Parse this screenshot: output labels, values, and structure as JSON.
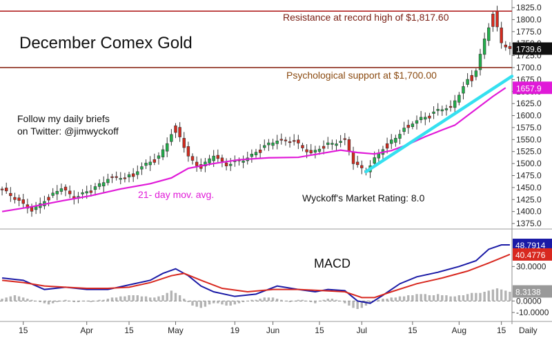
{
  "chart_data": [
    {
      "type": "candlestick",
      "title": "December Comex Gold",
      "note": "Follow my daily briefs\non Twitter:  @jimwyckoff",
      "y_ticks": [
        1375,
        1400,
        1425,
        1450,
        1475,
        1500,
        1525,
        1550,
        1575,
        1600,
        1625,
        1650,
        1675,
        1700,
        1725,
        1750,
        1775,
        1800,
        1825
      ],
      "y_tick_labels": [
        "1375.0",
        "1400.0",
        "1425.0",
        "1450.0",
        "1475.0",
        "1500.0",
        "1525.0",
        "1550.0",
        "1575.0",
        "1600.0",
        "1625.0",
        "1650.0",
        "1675.0",
        "1700.0",
        "1725.0",
        "1750.0",
        "1775.0",
        "1800.0",
        "1825.0"
      ],
      "ylim": [
        1365,
        1838
      ],
      "x_labels": [
        {
          "index": 5,
          "label": "15"
        },
        {
          "index": 20,
          "label": "Apr"
        },
        {
          "index": 30,
          "label": "15"
        },
        {
          "index": 41,
          "label": "May"
        },
        {
          "index": 55,
          "label": "19"
        },
        {
          "index": 64,
          "label": "Jun"
        },
        {
          "index": 75,
          "label": "15"
        },
        {
          "index": 85,
          "label": "Jul"
        },
        {
          "index": 97,
          "label": "15"
        },
        {
          "index": 108,
          "label": "Aug"
        },
        {
          "index": 118,
          "label": "15"
        }
      ],
      "x_axis_suffix": "Daily",
      "n_bars": 121,
      "price_series": [
        {
          "index": 0,
          "value": 1445
        },
        {
          "index": 4,
          "value": 1423
        },
        {
          "index": 7,
          "value": 1400
        },
        {
          "index": 10,
          "value": 1425
        },
        {
          "index": 14,
          "value": 1448
        },
        {
          "index": 17,
          "value": 1430
        },
        {
          "index": 21,
          "value": 1444
        },
        {
          "index": 25,
          "value": 1470
        },
        {
          "index": 29,
          "value": 1470
        },
        {
          "index": 33,
          "value": 1492
        },
        {
          "index": 37,
          "value": 1515
        },
        {
          "index": 41,
          "value": 1575
        },
        {
          "index": 44,
          "value": 1515
        },
        {
          "index": 47,
          "value": 1490
        },
        {
          "index": 50,
          "value": 1518
        },
        {
          "index": 53,
          "value": 1497
        },
        {
          "index": 57,
          "value": 1508
        },
        {
          "index": 61,
          "value": 1530
        },
        {
          "index": 65,
          "value": 1550
        },
        {
          "index": 69,
          "value": 1545
        },
        {
          "index": 73,
          "value": 1522
        },
        {
          "index": 77,
          "value": 1540
        },
        {
          "index": 81,
          "value": 1550
        },
        {
          "index": 83,
          "value": 1500
        },
        {
          "index": 86,
          "value": 1485
        },
        {
          "index": 88,
          "value": 1510
        },
        {
          "index": 91,
          "value": 1540
        },
        {
          "index": 95,
          "value": 1572
        },
        {
          "index": 99,
          "value": 1595
        },
        {
          "index": 103,
          "value": 1610
        },
        {
          "index": 106,
          "value": 1618
        },
        {
          "index": 109,
          "value": 1660
        },
        {
          "index": 112,
          "value": 1695
        },
        {
          "index": 114,
          "value": 1760
        },
        {
          "index": 116,
          "value": 1812
        },
        {
          "index": 118,
          "value": 1750
        },
        {
          "index": 120,
          "value": 1740
        }
      ],
      "ma_series": {
        "name": "21- day mov. avg.",
        "points": [
          {
            "index": 0,
            "value": 1400
          },
          {
            "index": 7,
            "value": 1410
          },
          {
            "index": 14,
            "value": 1422
          },
          {
            "index": 21,
            "value": 1433
          },
          {
            "index": 28,
            "value": 1447
          },
          {
            "index": 35,
            "value": 1458
          },
          {
            "index": 40,
            "value": 1470
          },
          {
            "index": 44,
            "value": 1490
          },
          {
            "index": 50,
            "value": 1500
          },
          {
            "index": 56,
            "value": 1508
          },
          {
            "index": 63,
            "value": 1512
          },
          {
            "index": 70,
            "value": 1513
          },
          {
            "index": 76,
            "value": 1522
          },
          {
            "index": 80,
            "value": 1528
          },
          {
            "index": 84,
            "value": 1523
          },
          {
            "index": 88,
            "value": 1520
          },
          {
            "index": 92,
            "value": 1527
          },
          {
            "index": 96,
            "value": 1540
          },
          {
            "index": 100,
            "value": 1556
          },
          {
            "index": 104,
            "value": 1570
          },
          {
            "index": 107,
            "value": 1580
          },
          {
            "index": 110,
            "value": 1600
          },
          {
            "index": 113,
            "value": 1620
          },
          {
            "index": 116,
            "value": 1640
          },
          {
            "index": 119,
            "value": 1657.9
          }
        ]
      },
      "resistance": {
        "value": 1817.6,
        "label": "Resistance at record high of $1,817.60"
      },
      "support": {
        "value": 1700,
        "label": "Psychological support at $1,700.00"
      },
      "trendline": {
        "start": {
          "index": 86,
          "value": 1483
        },
        "end": {
          "index": 121,
          "value": 1682
        }
      },
      "rating_label": "Wyckoff's Market Rating: 8.0",
      "last_price_label": "1739.6",
      "ma_value_label": "1657.9"
    },
    {
      "type": "line",
      "title": "MACD",
      "y_tick_labels": [
        {
          "value": 30,
          "label": "30.0000"
        },
        {
          "value": 0,
          "label": "0.0000"
        },
        {
          "value": -10,
          "label": "-10.0000"
        }
      ],
      "ylim": [
        -13,
        62
      ],
      "series": [
        {
          "name": "",
          "color": "#1a1aa6",
          "points": [
            {
              "index": 0,
              "value": 20
            },
            {
              "index": 5,
              "value": 18
            },
            {
              "index": 10,
              "value": 10
            },
            {
              "index": 15,
              "value": 12
            },
            {
              "index": 20,
              "value": 10
            },
            {
              "index": 25,
              "value": 10
            },
            {
              "index": 30,
              "value": 14
            },
            {
              "index": 35,
              "value": 18
            },
            {
              "index": 38,
              "value": 24
            },
            {
              "index": 41,
              "value": 28
            },
            {
              "index": 44,
              "value": 22
            },
            {
              "index": 47,
              "value": 13
            },
            {
              "index": 50,
              "value": 8
            },
            {
              "index": 55,
              "value": 4
            },
            {
              "index": 60,
              "value": 6
            },
            {
              "index": 65,
              "value": 13
            },
            {
              "index": 70,
              "value": 10
            },
            {
              "index": 74,
              "value": 8
            },
            {
              "index": 77,
              "value": 10
            },
            {
              "index": 81,
              "value": 9
            },
            {
              "index": 84,
              "value": 0
            },
            {
              "index": 87,
              "value": -2
            },
            {
              "index": 90,
              "value": 5
            },
            {
              "index": 94,
              "value": 15
            },
            {
              "index": 98,
              "value": 21
            },
            {
              "index": 103,
              "value": 25
            },
            {
              "index": 108,
              "value": 30
            },
            {
              "index": 112,
              "value": 35
            },
            {
              "index": 115,
              "value": 45
            },
            {
              "index": 118,
              "value": 48.8
            },
            {
              "index": 120,
              "value": 48.8
            }
          ]
        },
        {
          "name": "",
          "color": "#d8281f",
          "points": [
            {
              "index": 0,
              "value": 18
            },
            {
              "index": 5,
              "value": 16
            },
            {
              "index": 10,
              "value": 13
            },
            {
              "index": 15,
              "value": 12
            },
            {
              "index": 20,
              "value": 11
            },
            {
              "index": 25,
              "value": 11
            },
            {
              "index": 30,
              "value": 12
            },
            {
              "index": 35,
              "value": 16
            },
            {
              "index": 40,
              "value": 22
            },
            {
              "index": 43,
              "value": 24
            },
            {
              "index": 47,
              "value": 18
            },
            {
              "index": 52,
              "value": 11
            },
            {
              "index": 58,
              "value": 8
            },
            {
              "index": 64,
              "value": 10
            },
            {
              "index": 70,
              "value": 10
            },
            {
              "index": 76,
              "value": 9
            },
            {
              "index": 81,
              "value": 8
            },
            {
              "index": 85,
              "value": 3
            },
            {
              "index": 88,
              "value": 3
            },
            {
              "index": 92,
              "value": 8
            },
            {
              "index": 98,
              "value": 15
            },
            {
              "index": 104,
              "value": 20
            },
            {
              "index": 110,
              "value": 26
            },
            {
              "index": 115,
              "value": 33
            },
            {
              "index": 120,
              "value": 40.5
            }
          ]
        }
      ],
      "histogram_values": [
        2,
        3,
        4,
        5,
        4,
        3,
        2,
        1,
        0,
        -1,
        -2,
        -3,
        -2,
        -1,
        0,
        1,
        0,
        -1,
        -1,
        0,
        0,
        -1,
        0,
        1,
        1,
        2,
        3,
        3,
        4,
        4,
        5,
        5,
        5,
        4,
        4,
        3,
        3,
        4,
        5,
        7,
        9,
        7,
        5,
        2,
        -1,
        -4,
        -5,
        -6,
        -5,
        -3,
        -2,
        -2,
        -3,
        -4,
        -4,
        -3,
        -2,
        -1,
        0,
        1,
        1,
        2,
        3,
        3,
        3,
        2,
        1,
        0,
        -1,
        0,
        1,
        1,
        0,
        -1,
        -2,
        0,
        1,
        2,
        2,
        1,
        0,
        -2,
        -4,
        -6,
        -7,
        -6,
        -4,
        -2,
        0,
        1,
        2,
        2,
        3,
        3,
        4,
        4,
        5,
        5,
        6,
        6,
        6,
        5,
        5,
        6,
        5,
        5,
        4,
        4,
        5,
        5,
        6,
        7,
        7,
        7,
        8,
        9,
        10,
        11,
        10,
        9,
        8
      ],
      "histogram_color": "#b3b3b3",
      "value_labels": [
        {
          "label": "48.7914",
          "color": "#1a1aa6"
        },
        {
          "label": "40.4776",
          "color": "#d8281f"
        },
        {
          "label": "8.3138",
          "color": "#999999"
        }
      ]
    }
  ]
}
